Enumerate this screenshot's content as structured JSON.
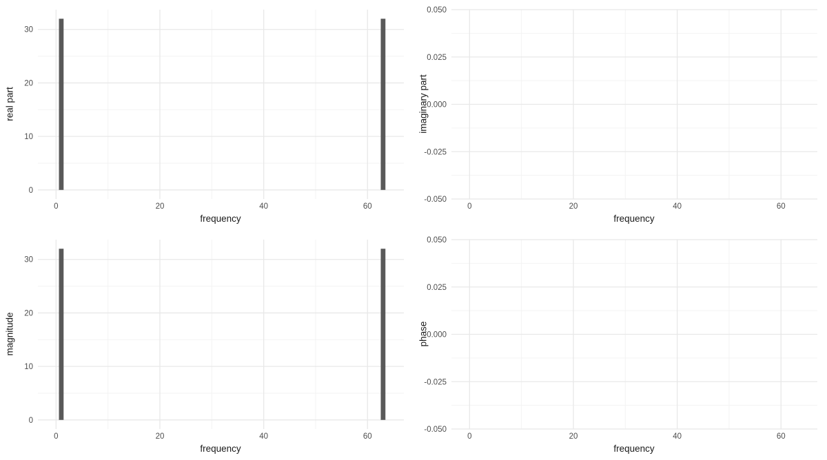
{
  "chart_data": [
    {
      "type": "bar",
      "panel": "real-part",
      "xlabel": "frequency",
      "ylabel": "real part",
      "xlim": [
        -3.5,
        67
      ],
      "ylim": [
        -1.7,
        33.7
      ],
      "x_ticks": [
        0,
        20,
        40,
        60
      ],
      "x_tick_labels": [
        "0",
        "20",
        "40",
        "60"
      ],
      "x_minor_ticks": [
        10,
        30,
        50
      ],
      "y_ticks": [
        0,
        10,
        20,
        30
      ],
      "y_tick_labels": [
        "0",
        "10",
        "20",
        "30"
      ],
      "y_minor_ticks": [
        5,
        15,
        25
      ],
      "bars": [
        {
          "x": 1,
          "y": 32
        },
        {
          "x": 63,
          "y": 32
        }
      ],
      "bar_width": 0.9,
      "grid": true,
      "legend": "none"
    },
    {
      "type": "bar",
      "panel": "imaginary-part",
      "xlabel": "frequency",
      "ylabel": "imaginary part",
      "xlim": [
        -3.5,
        67
      ],
      "ylim": [
        -0.05,
        0.05
      ],
      "x_ticks": [
        0,
        20,
        40,
        60
      ],
      "x_tick_labels": [
        "0",
        "20",
        "40",
        "60"
      ],
      "x_minor_ticks": [
        10,
        30,
        50
      ],
      "y_ticks": [
        0.05,
        0.025,
        0,
        -0.025,
        -0.05
      ],
      "y_tick_labels": [
        "0.050",
        "0.025",
        "0.000",
        "-0.025",
        "-0.050"
      ],
      "y_minor_ticks": [
        0.0375,
        0.0125,
        -0.0125,
        -0.0375
      ],
      "bars": [],
      "bar_width": 0.9,
      "grid": true,
      "legend": "none"
    },
    {
      "type": "bar",
      "panel": "magnitude",
      "xlabel": "frequency",
      "ylabel": "magnitude",
      "xlim": [
        -3.5,
        67
      ],
      "ylim": [
        -1.7,
        33.7
      ],
      "x_ticks": [
        0,
        20,
        40,
        60
      ],
      "x_tick_labels": [
        "0",
        "20",
        "40",
        "60"
      ],
      "x_minor_ticks": [
        10,
        30,
        50
      ],
      "y_ticks": [
        0,
        10,
        20,
        30
      ],
      "y_tick_labels": [
        "0",
        "10",
        "20",
        "30"
      ],
      "y_minor_ticks": [
        5,
        15,
        25
      ],
      "bars": [
        {
          "x": 1,
          "y": 32
        },
        {
          "x": 63,
          "y": 32
        }
      ],
      "bar_width": 0.9,
      "grid": true,
      "legend": "none"
    },
    {
      "type": "bar",
      "panel": "phase",
      "xlabel": "frequency",
      "ylabel": "phase",
      "xlim": [
        -3.5,
        67
      ],
      "ylim": [
        -0.05,
        0.05
      ],
      "x_ticks": [
        0,
        20,
        40,
        60
      ],
      "x_tick_labels": [
        "0",
        "20",
        "40",
        "60"
      ],
      "x_minor_ticks": [
        10,
        30,
        50
      ],
      "y_ticks": [
        0.05,
        0.025,
        0,
        -0.025,
        -0.05
      ],
      "y_tick_labels": [
        "0.050",
        "0.025",
        "0.000",
        "-0.025",
        "-0.050"
      ],
      "y_minor_ticks": [
        0.0375,
        0.0125,
        -0.0125,
        -0.0375
      ],
      "bars": [],
      "bar_width": 0.9,
      "grid": true,
      "legend": "none"
    }
  ],
  "colors": {
    "bar_fill": "#595959",
    "grid_major": "#e8e8e8",
    "grid_minor": "#f3f3f3",
    "tick_label": "#4d4d4d",
    "axis_title": "#1a1a1a",
    "background": "#ffffff"
  }
}
